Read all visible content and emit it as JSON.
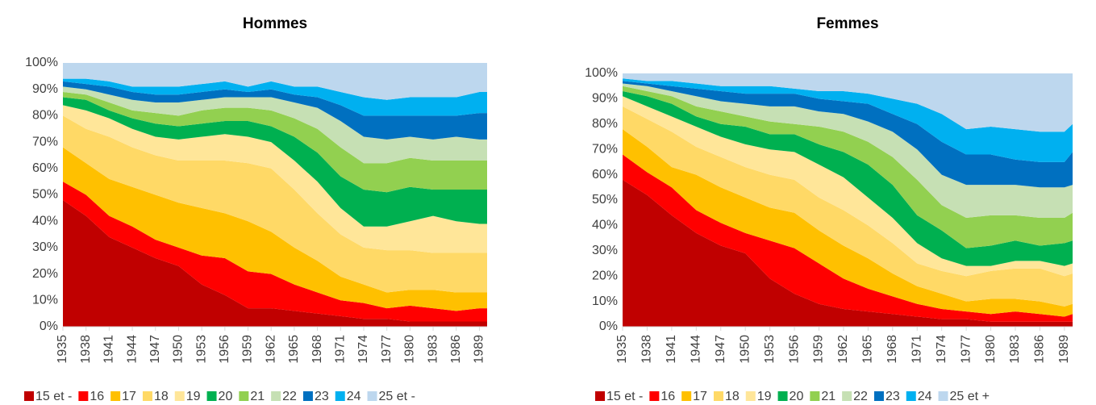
{
  "chart_data": [
    {
      "type": "area",
      "title": "Hommes",
      "x": [
        1935,
        1938,
        1941,
        1944,
        1947,
        1950,
        1953,
        1956,
        1959,
        1962,
        1965,
        1968,
        1971,
        1974,
        1977,
        1980,
        1983,
        1986,
        1989,
        1990
      ],
      "xlim": [
        1935,
        1990
      ],
      "xticks": [
        1935,
        1938,
        1941,
        1944,
        1947,
        1950,
        1953,
        1956,
        1959,
        1962,
        1965,
        1968,
        1971,
        1974,
        1977,
        1980,
        1983,
        1986,
        1989
      ],
      "ylim": [
        0,
        100
      ],
      "yticks": [
        {
          "value": 0,
          "label": "0%"
        },
        {
          "value": 10,
          "label": "10%"
        },
        {
          "value": 20,
          "label": "20%"
        },
        {
          "value": 30,
          "label": "30%"
        },
        {
          "value": 40,
          "label": "40%"
        },
        {
          "value": 50,
          "label": "50%"
        },
        {
          "value": 60,
          "label": "60%"
        },
        {
          "value": 70,
          "label": "70%"
        },
        {
          "value": 80,
          "label": "80%"
        },
        {
          "value": 90,
          "label": "90%"
        },
        {
          "value": 100,
          "label": "100%"
        }
      ],
      "series": [
        {
          "name": "15 et -",
          "color": "#c00000",
          "values": [
            48,
            42,
            34,
            30,
            26,
            23,
            16,
            12,
            7,
            7,
            6,
            5,
            4,
            3,
            3,
            2,
            2,
            2,
            2,
            2
          ]
        },
        {
          "name": "16",
          "color": "#ff0000",
          "values": [
            7,
            8,
            8,
            8,
            7,
            7,
            11,
            14,
            14,
            13,
            10,
            8,
            6,
            6,
            4,
            6,
            5,
            4,
            5,
            5
          ]
        },
        {
          "name": "17",
          "color": "#ffc000",
          "values": [
            13,
            12,
            14,
            15,
            17,
            17,
            18,
            17,
            19,
            16,
            14,
            12,
            9,
            7,
            6,
            6,
            7,
            7,
            6,
            6
          ]
        },
        {
          "name": "18",
          "color": "#ffd966",
          "values": [
            12,
            13,
            16,
            15,
            15,
            16,
            18,
            20,
            22,
            24,
            22,
            18,
            16,
            14,
            16,
            15,
            14,
            15,
            15,
            15
          ]
        },
        {
          "name": "19",
          "color": "#ffe699",
          "values": [
            4,
            7,
            7,
            7,
            7,
            8,
            9,
            10,
            10,
            10,
            11,
            12,
            10,
            8,
            9,
            11,
            14,
            12,
            11,
            11
          ]
        },
        {
          "name": "20",
          "color": "#00b050",
          "values": [
            3,
            4,
            3,
            4,
            5,
            5,
            5,
            5,
            6,
            6,
            9,
            11,
            12,
            14,
            13,
            13,
            10,
            12,
            13,
            13
          ]
        },
        {
          "name": "21",
          "color": "#92d050",
          "values": [
            2,
            2,
            3,
            3,
            4,
            4,
            5,
            5,
            5,
            6,
            7,
            9,
            11,
            10,
            11,
            11,
            11,
            11,
            11,
            11
          ]
        },
        {
          "name": "22",
          "color": "#c6e0b4",
          "values": [
            2,
            2,
            3,
            4,
            4,
            5,
            4,
            4,
            4,
            5,
            6,
            8,
            10,
            10,
            9,
            8,
            8,
            9,
            8,
            8
          ]
        },
        {
          "name": "23",
          "color": "#0070c0",
          "values": [
            2,
            2,
            3,
            3,
            3,
            3,
            3,
            3,
            2,
            3,
            3,
            4,
            6,
            8,
            9,
            8,
            9,
            8,
            10,
            10
          ]
        },
        {
          "name": "24",
          "color": "#00b0f0",
          "values": [
            1,
            2,
            2,
            2,
            3,
            3,
            3,
            3,
            2,
            3,
            3,
            4,
            5,
            7,
            6,
            7,
            7,
            7,
            8,
            8
          ]
        },
        {
          "name": "25 et -",
          "color": "#bdd7ee",
          "values": [
            6,
            6,
            7,
            9,
            9,
            9,
            8,
            7,
            9,
            7,
            9,
            9,
            11,
            13,
            14,
            13,
            13,
            13,
            11,
            11
          ]
        }
      ]
    },
    {
      "type": "area",
      "title": "Femmes",
      "x": [
        1935,
        1938,
        1941,
        1944,
        1947,
        1950,
        1953,
        1956,
        1959,
        1962,
        1965,
        1968,
        1971,
        1974,
        1977,
        1980,
        1983,
        1986,
        1989,
        1990
      ],
      "xlim": [
        1935,
        1990
      ],
      "xticks": [
        1935,
        1938,
        1941,
        1944,
        1947,
        1950,
        1953,
        1956,
        1959,
        1962,
        1965,
        1968,
        1971,
        1974,
        1977,
        1980,
        1983,
        1986,
        1989
      ],
      "ylim": [
        0,
        100
      ],
      "yticks": [
        {
          "value": 0,
          "label": "0%"
        },
        {
          "value": 10,
          "label": "10%"
        },
        {
          "value": 20,
          "label": "20%"
        },
        {
          "value": 30,
          "label": "30%"
        },
        {
          "value": 40,
          "label": "40%"
        },
        {
          "value": 50,
          "label": "50%"
        },
        {
          "value": 60,
          "label": "60%"
        },
        {
          "value": 70,
          "label": "70%"
        },
        {
          "value": 80,
          "label": "80%"
        },
        {
          "value": 90,
          "label": "90%"
        },
        {
          "value": 100,
          "label": "100%"
        }
      ],
      "series": [
        {
          "name": "15 et -",
          "color": "#c00000",
          "values": [
            58,
            52,
            44,
            37,
            32,
            29,
            19,
            13,
            9,
            7,
            6,
            5,
            4,
            3,
            3,
            2,
            2,
            2,
            2,
            2
          ]
        },
        {
          "name": "16",
          "color": "#ff0000",
          "values": [
            10,
            9,
            11,
            9,
            9,
            8,
            15,
            18,
            16,
            12,
            9,
            7,
            5,
            4,
            3,
            3,
            4,
            3,
            2,
            3
          ]
        },
        {
          "name": "17",
          "color": "#ffc000",
          "values": [
            10,
            10,
            8,
            14,
            14,
            14,
            13,
            14,
            13,
            13,
            12,
            9,
            7,
            6,
            4,
            6,
            5,
            5,
            4,
            4
          ]
        },
        {
          "name": "18",
          "color": "#ffd966",
          "values": [
            9,
            11,
            14,
            11,
            12,
            12,
            13,
            13,
            13,
            14,
            13,
            12,
            9,
            9,
            10,
            11,
            12,
            13,
            12,
            12
          ]
        },
        {
          "name": "19",
          "color": "#ffe699",
          "values": [
            4,
            5,
            6,
            8,
            8,
            9,
            10,
            11,
            13,
            13,
            11,
            10,
            8,
            5,
            4,
            2,
            3,
            3,
            4,
            4
          ]
        },
        {
          "name": "20",
          "color": "#00b050",
          "values": [
            2,
            4,
            5,
            4,
            5,
            7,
            6,
            7,
            8,
            10,
            13,
            13,
            11,
            11,
            7,
            8,
            8,
            6,
            9,
            9
          ]
        },
        {
          "name": "21",
          "color": "#92d050",
          "values": [
            2,
            2,
            3,
            4,
            5,
            4,
            5,
            4,
            7,
            8,
            9,
            11,
            14,
            10,
            12,
            12,
            10,
            11,
            10,
            11
          ]
        },
        {
          "name": "22",
          "color": "#c6e0b4",
          "values": [
            1,
            2,
            2,
            4,
            4,
            5,
            6,
            7,
            6,
            7,
            8,
            10,
            12,
            12,
            13,
            12,
            12,
            12,
            12,
            11
          ]
        },
        {
          "name": "23",
          "color": "#0070c0",
          "values": [
            1,
            1,
            2,
            3,
            4,
            4,
            5,
            5,
            5,
            5,
            7,
            7,
            10,
            13,
            12,
            12,
            10,
            10,
            10,
            13
          ]
        },
        {
          "name": "24",
          "color": "#00b0f0",
          "values": [
            1,
            1,
            2,
            2,
            2,
            3,
            3,
            2,
            3,
            4,
            4,
            6,
            8,
            11,
            10,
            11,
            12,
            12,
            12,
            11
          ]
        },
        {
          "name": "25 et +",
          "color": "#bdd7ee",
          "values": [
            2,
            3,
            3,
            4,
            5,
            5,
            5,
            6,
            7,
            7,
            8,
            10,
            12,
            16,
            22,
            21,
            22,
            23,
            23,
            20
          ]
        }
      ]
    }
  ]
}
